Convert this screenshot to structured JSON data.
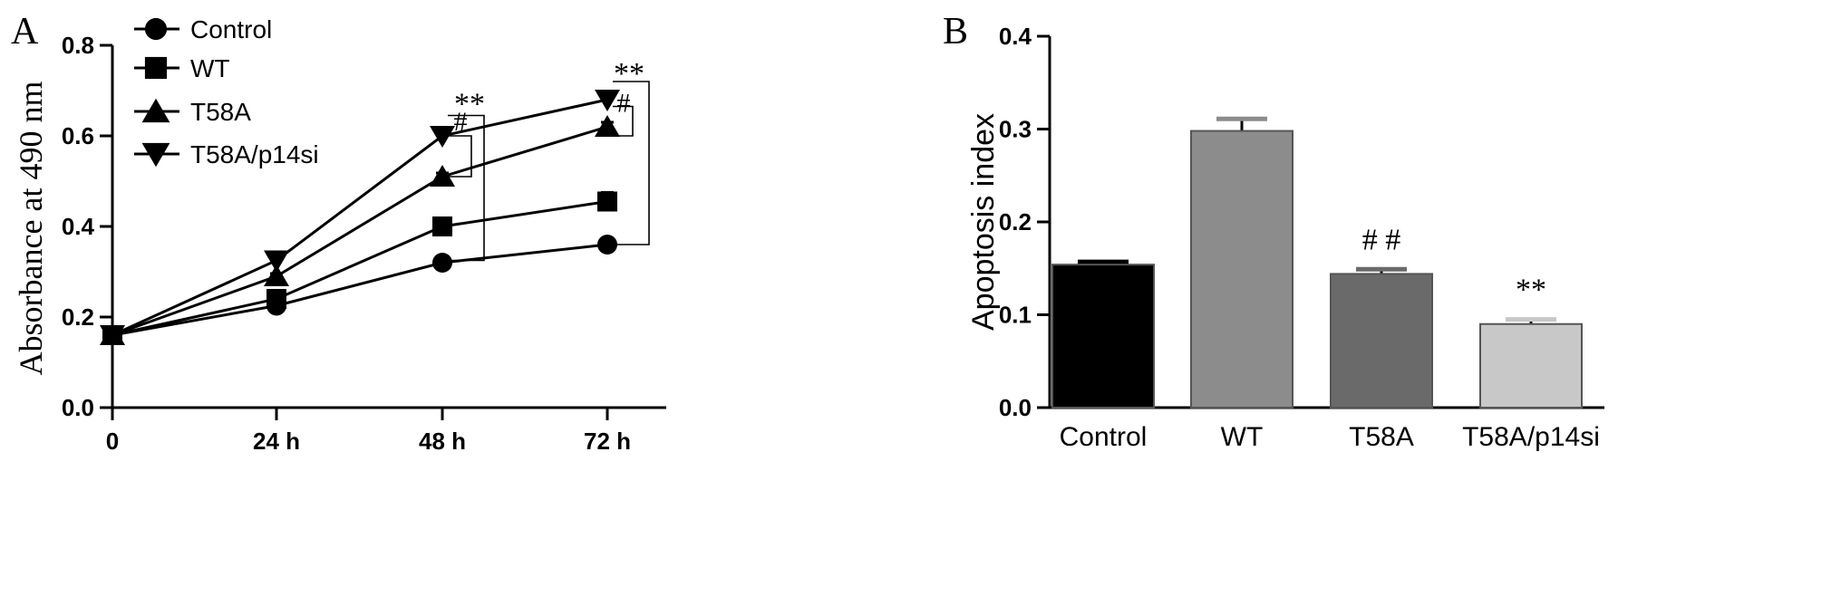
{
  "chart_data": [
    {
      "panel_label": "A",
      "type": "line",
      "xlabel": "",
      "ylabel": "Absorbance at 490 nm",
      "categories": [
        "0",
        "24 h",
        "48 h",
        "72 h"
      ],
      "ylim": [
        0,
        0.8
      ],
      "yticks": [
        "0.0",
        "0.2",
        "0.4",
        "0.6",
        "0.8"
      ],
      "legend_position": "top-left",
      "series": [
        {
          "name": "Control",
          "marker": "circle",
          "values": [
            0.16,
            0.225,
            0.32,
            0.36
          ],
          "errors": [
            0.005,
            0.005,
            0.008,
            0.008
          ]
        },
        {
          "name": "WT",
          "marker": "square",
          "values": [
            0.16,
            0.24,
            0.4,
            0.455
          ],
          "errors": [
            0.005,
            0.006,
            0.008,
            0.02
          ]
        },
        {
          "name": "T58A",
          "marker": "triangle-up",
          "values": [
            0.16,
            0.29,
            0.51,
            0.62
          ],
          "errors": [
            0.005,
            0.006,
            0.008,
            0.01
          ]
        },
        {
          "name": "T58A/p14si",
          "marker": "triangle-down",
          "values": [
            0.16,
            0.325,
            0.6,
            0.68
          ],
          "errors": [
            0.005,
            0.006,
            0.008,
            0.008
          ]
        }
      ],
      "annotations": [
        {
          "id": "48-star",
          "text": "**"
        },
        {
          "id": "48-hash",
          "text": "#"
        },
        {
          "id": "72-star",
          "text": "**"
        },
        {
          "id": "72-hash",
          "text": "#"
        }
      ]
    },
    {
      "panel_label": "B",
      "type": "bar",
      "xlabel": "",
      "ylabel": "Apoptosis index",
      "categories": [
        "Control",
        "WT",
        "T58A",
        "T58A/p14si"
      ],
      "values": [
        0.154,
        0.298,
        0.144,
        0.09
      ],
      "errors": [
        0.003,
        0.013,
        0.005,
        0.005
      ],
      "ylim": [
        0,
        0.4
      ],
      "yticks": [
        "0.0",
        "0.1",
        "0.2",
        "0.3",
        "0.4"
      ],
      "colors": [
        "#000000",
        "#8c8c8c",
        "#6a6a6a",
        "#c8c8c8"
      ],
      "annotations": [
        {
          "category_index": 2,
          "text": "# #"
        },
        {
          "category_index": 3,
          "text": "**"
        }
      ]
    }
  ]
}
